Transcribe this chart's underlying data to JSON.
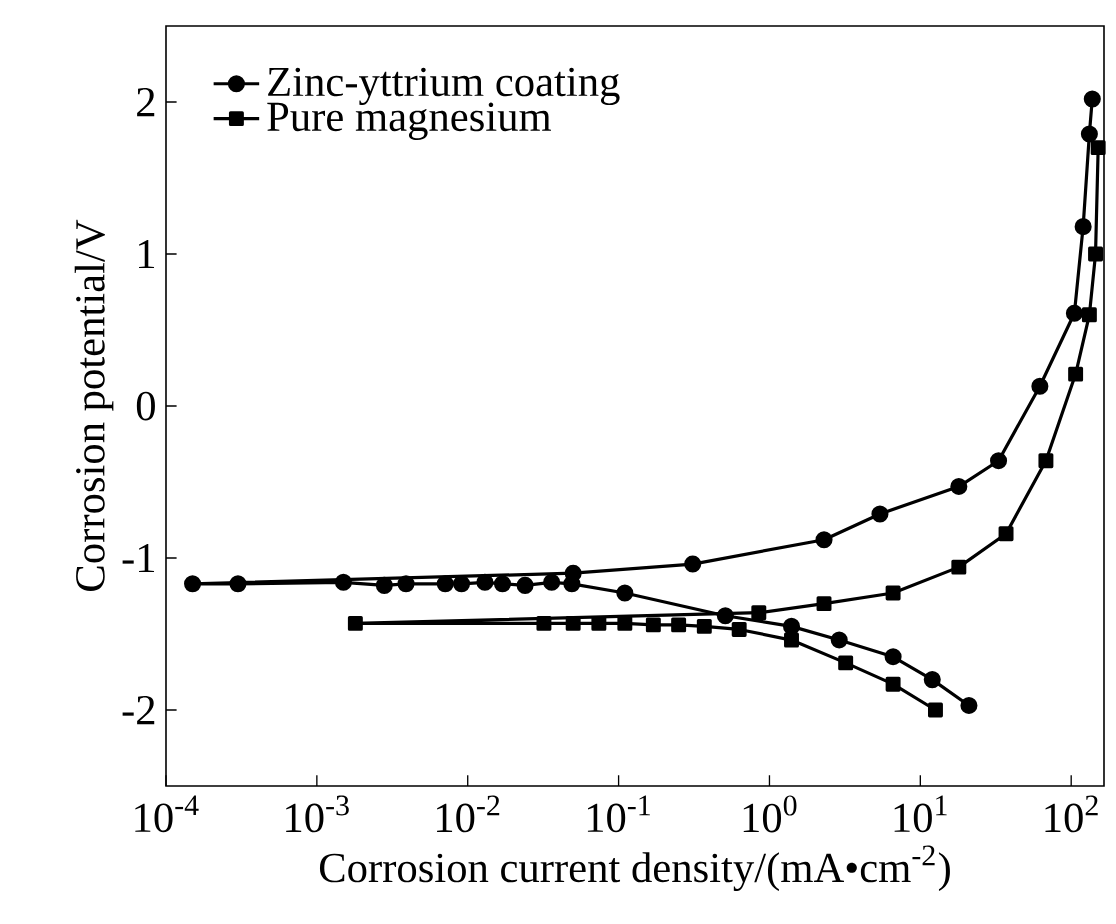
{
  "chart_data": {
    "type": "line",
    "xlabel": "Corrosion current density/(mA•cm$^{-2}$)",
    "ylabel": "Corrosion potential/V",
    "log": "x",
    "legend": "top left",
    "line_style": "solid",
    "grid": false,
    "xlim": [
      0.0001,
      165
    ],
    "ylim": [
      -2.5,
      2.5
    ],
    "xticks": [
      {
        "value": 0.0001,
        "label": "10$^{-4}$"
      },
      {
        "value": 0.001,
        "label": "10$^{-3}$"
      },
      {
        "value": 0.01,
        "label": "10$^{-2}$"
      },
      {
        "value": 0.1,
        "label": "10$^{-1}$"
      },
      {
        "value": 1,
        "label": "10$^{0}$"
      },
      {
        "value": 10,
        "label": "10$^{1}$"
      },
      {
        "value": 100,
        "label": "10$^{2}$"
      }
    ],
    "yticks": [
      -2,
      -1,
      0,
      1,
      2
    ],
    "series": [
      {
        "name": "Zinc-yttrium coating",
        "color": "#000000",
        "marker": "circle",
        "x": [
          21,
          12,
          6.6,
          2.9,
          1.4,
          0.51,
          0.11,
          0.049,
          0.036,
          0.024,
          0.017,
          0.013,
          0.0091,
          0.0071,
          0.0039,
          0.0028,
          0.0015,
          0.0003,
          0.00015,
          0.05,
          0.31,
          2.3,
          5.4,
          18,
          33,
          62,
          105,
          120,
          132,
          138
        ],
        "values": [
          -1.97,
          -1.8,
          -1.65,
          -1.54,
          -1.45,
          -1.38,
          -1.23,
          -1.17,
          -1.16,
          -1.18,
          -1.17,
          -1.16,
          -1.17,
          -1.17,
          -1.17,
          -1.18,
          -1.16,
          -1.17,
          -1.17,
          -1.1,
          -1.04,
          -0.88,
          -0.71,
          -0.53,
          -0.36,
          0.13,
          0.61,
          1.18,
          1.79,
          2.02
        ]
      },
      {
        "name": "Pure magnesium",
        "color": "#000000",
        "marker": "square",
        "x": [
          12.6,
          6.6,
          3.2,
          1.4,
          0.63,
          0.37,
          0.25,
          0.17,
          0.11,
          0.074,
          0.05,
          0.032,
          0.0018,
          0.85,
          2.3,
          6.6,
          18,
          37,
          68,
          107,
          132,
          145,
          151
        ],
        "values": [
          -2.0,
          -1.83,
          -1.69,
          -1.54,
          -1.47,
          -1.45,
          -1.44,
          -1.44,
          -1.43,
          -1.43,
          -1.43,
          -1.43,
          -1.43,
          -1.36,
          -1.3,
          -1.23,
          -1.06,
          -0.84,
          -0.36,
          0.21,
          0.6,
          1.0,
          1.7
        ]
      }
    ]
  }
}
